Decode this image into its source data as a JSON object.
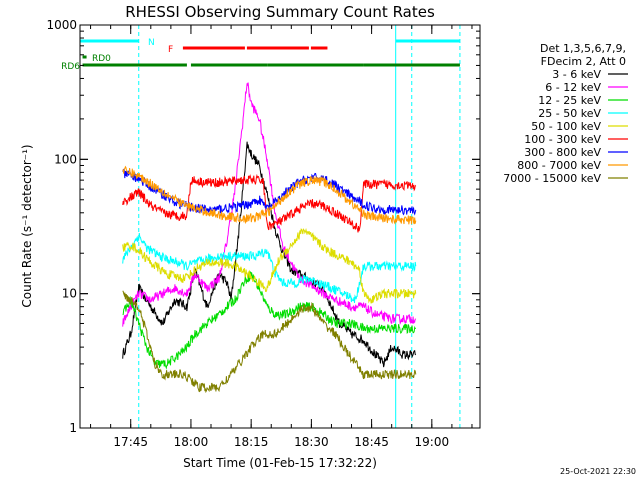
{
  "chart_data": {
    "type": "line",
    "title": "RHESSI Observing Summary Count Rates",
    "xlabel": "Start Time (01-Feb-15 17:32:22)",
    "ylabel": "Count Rate (s⁻¹ detector⁻¹)",
    "y_scale": "log",
    "ylim": [
      1,
      1000
    ],
    "xlim": [
      "17:32:22",
      "19:12:00"
    ],
    "x_ticks": [
      "17:45",
      "18:00",
      "18:15",
      "18:30",
      "18:45",
      "19:00"
    ],
    "y_ticks": [
      "1",
      "10",
      "100",
      "1000"
    ],
    "legend_header": [
      "Det 1,3,5,6,7,9,",
      "FDecim 2, Att 0"
    ],
    "legend_position": "right",
    "series": [
      {
        "name": "3 - 6 keV",
        "color": "#000000",
        "points": [
          [
            "17:43",
            3.5
          ],
          [
            "17:45",
            5
          ],
          [
            "17:47",
            11
          ],
          [
            "17:50",
            8
          ],
          [
            "17:53",
            6
          ],
          [
            "17:56",
            9
          ],
          [
            "17:59",
            8
          ],
          [
            "18:01",
            15
          ],
          [
            "18:04",
            8
          ],
          [
            "18:07",
            14
          ],
          [
            "18:09",
            12
          ],
          [
            "18:10",
            9
          ],
          [
            "18:12",
            30
          ],
          [
            "18:14",
            130
          ],
          [
            "18:15",
            110
          ],
          [
            "18:17",
            90
          ],
          [
            "18:19",
            55
          ],
          [
            "18:21",
            30
          ],
          [
            "18:23",
            20
          ],
          [
            "18:25",
            15
          ],
          [
            "18:27",
            14
          ],
          [
            "18:29",
            13
          ],
          [
            "18:31",
            12
          ],
          [
            "18:33",
            11
          ],
          [
            "18:35",
            8
          ],
          [
            "18:37",
            6
          ],
          [
            "18:40",
            5
          ],
          [
            "18:43",
            4.5
          ],
          [
            "18:46",
            3.5
          ],
          [
            "18:48",
            3
          ],
          [
            "18:50",
            4
          ],
          [
            "18:53",
            3.5
          ],
          [
            "18:56",
            3.5
          ]
        ]
      },
      {
        "name": "6 - 12 keV",
        "color": "#ff00ff",
        "points": [
          [
            "17:43",
            6
          ],
          [
            "17:45",
            8
          ],
          [
            "17:47",
            10
          ],
          [
            "17:50",
            9
          ],
          [
            "17:53",
            10
          ],
          [
            "17:56",
            11
          ],
          [
            "17:59",
            10
          ],
          [
            "18:01",
            14
          ],
          [
            "18:04",
            11
          ],
          [
            "18:07",
            13
          ],
          [
            "18:09",
            25
          ],
          [
            "18:11",
            60
          ],
          [
            "18:13",
            200
          ],
          [
            "18:14",
            380
          ],
          [
            "18:15",
            260
          ],
          [
            "18:17",
            200
          ],
          [
            "18:19",
            100
          ],
          [
            "18:21",
            40
          ],
          [
            "18:23",
            22
          ],
          [
            "18:25",
            17
          ],
          [
            "18:27",
            13
          ],
          [
            "18:29",
            12
          ],
          [
            "18:31",
            11
          ],
          [
            "18:33",
            10
          ],
          [
            "18:36",
            9
          ],
          [
            "18:40",
            8
          ],
          [
            "18:43",
            8
          ],
          [
            "18:46",
            7
          ],
          [
            "18:50",
            6.5
          ],
          [
            "18:56",
            6.5
          ]
        ]
      },
      {
        "name": "12 - 25 keV",
        "color": "#00dd00",
        "points": [
          [
            "17:43",
            7
          ],
          [
            "17:45",
            9
          ],
          [
            "17:47",
            6
          ],
          [
            "17:49",
            4
          ],
          [
            "17:51",
            3
          ],
          [
            "17:54",
            3
          ],
          [
            "17:57",
            3.5
          ],
          [
            "17:59",
            4
          ],
          [
            "18:01",
            5
          ],
          [
            "18:04",
            6
          ],
          [
            "18:07",
            7
          ],
          [
            "18:09",
            8
          ],
          [
            "18:11",
            9
          ],
          [
            "18:13",
            12
          ],
          [
            "18:15",
            14
          ],
          [
            "18:17",
            11
          ],
          [
            "18:19",
            8
          ],
          [
            "18:21",
            7
          ],
          [
            "18:24",
            7
          ],
          [
            "18:27",
            8
          ],
          [
            "18:30",
            8
          ],
          [
            "18:33",
            7
          ],
          [
            "18:36",
            6
          ],
          [
            "18:40",
            6
          ],
          [
            "18:43",
            5.5
          ],
          [
            "18:46",
            5.5
          ],
          [
            "18:50",
            5.5
          ],
          [
            "18:56",
            5.5
          ]
        ]
      },
      {
        "name": "25 - 50 keV",
        "color": "#00ffff",
        "points": [
          [
            "17:43",
            18
          ],
          [
            "17:45",
            22
          ],
          [
            "17:47",
            27
          ],
          [
            "17:49",
            22
          ],
          [
            "17:51",
            20
          ],
          [
            "17:54",
            18
          ],
          [
            "17:57",
            17
          ],
          [
            "17:59",
            16
          ],
          [
            "18:01",
            17
          ],
          [
            "18:04",
            18
          ],
          [
            "18:07",
            19
          ],
          [
            "18:10",
            19
          ],
          [
            "18:13",
            19
          ],
          [
            "18:16",
            19
          ],
          [
            "18:19",
            21
          ],
          [
            "18:21",
            14
          ],
          [
            "18:23",
            12
          ],
          [
            "18:26",
            12
          ],
          [
            "18:29",
            13
          ],
          [
            "18:32",
            12
          ],
          [
            "18:35",
            11
          ],
          [
            "18:38",
            10
          ],
          [
            "18:41",
            9
          ],
          [
            "18:43",
            16
          ],
          [
            "18:46",
            16
          ],
          [
            "18:50",
            16
          ],
          [
            "18:56",
            16
          ]
        ]
      },
      {
        "name": "50 - 100 keV",
        "color": "#dddd00",
        "points": [
          [
            "17:43",
            22
          ],
          [
            "17:45",
            23
          ],
          [
            "17:47",
            21
          ],
          [
            "17:50",
            17
          ],
          [
            "17:54",
            14
          ],
          [
            "17:58",
            13
          ],
          [
            "18:00",
            14
          ],
          [
            "18:02",
            16
          ],
          [
            "18:05",
            17
          ],
          [
            "18:08",
            17
          ],
          [
            "18:11",
            16
          ],
          [
            "18:14",
            14
          ],
          [
            "18:17",
            12
          ],
          [
            "18:19",
            11
          ],
          [
            "18:22",
            18
          ],
          [
            "18:26",
            25
          ],
          [
            "18:28",
            30
          ],
          [
            "18:31",
            25
          ],
          [
            "18:34",
            21
          ],
          [
            "18:37",
            19
          ],
          [
            "18:40",
            17
          ],
          [
            "18:42",
            15
          ],
          [
            "18:43",
            10
          ],
          [
            "18:45",
            9
          ],
          [
            "18:48",
            10
          ],
          [
            "18:50",
            10
          ],
          [
            "18:56",
            10
          ]
        ]
      },
      {
        "name": "100 - 300 keV",
        "color": "#ff0000",
        "points": [
          [
            "17:43",
            48
          ],
          [
            "17:45",
            52
          ],
          [
            "17:47",
            57
          ],
          [
            "17:50",
            45
          ],
          [
            "17:53",
            40
          ],
          [
            "17:56",
            38
          ],
          [
            "17:59",
            38
          ],
          [
            "18:00",
            70
          ],
          [
            "18:03",
            68
          ],
          [
            "18:06",
            67
          ],
          [
            "18:09",
            68
          ],
          [
            "18:12",
            70
          ],
          [
            "18:15",
            70
          ],
          [
            "18:18",
            70
          ],
          [
            "18:19",
            32
          ],
          [
            "18:21",
            33
          ],
          [
            "18:24",
            37
          ],
          [
            "18:27",
            43
          ],
          [
            "18:30",
            47
          ],
          [
            "18:33",
            45
          ],
          [
            "18:36",
            40
          ],
          [
            "18:39",
            35
          ],
          [
            "18:42",
            30
          ],
          [
            "18:43",
            65
          ],
          [
            "18:46",
            65
          ],
          [
            "18:50",
            65
          ],
          [
            "18:56",
            63
          ]
        ]
      },
      {
        "name": "300 - 800 keV",
        "color": "#0000ff",
        "points": [
          [
            "17:43",
            78
          ],
          [
            "17:45",
            76
          ],
          [
            "17:47",
            72
          ],
          [
            "17:50",
            62
          ],
          [
            "17:53",
            55
          ],
          [
            "17:56",
            48
          ],
          [
            "17:59",
            45
          ],
          [
            "18:02",
            43
          ],
          [
            "18:05",
            42
          ],
          [
            "18:08",
            43
          ],
          [
            "18:11",
            44
          ],
          [
            "18:14",
            46
          ],
          [
            "18:17",
            50
          ],
          [
            "18:19",
            43
          ],
          [
            "18:21",
            48
          ],
          [
            "18:24",
            58
          ],
          [
            "18:27",
            68
          ],
          [
            "18:30",
            73
          ],
          [
            "18:33",
            72
          ],
          [
            "18:36",
            64
          ],
          [
            "18:39",
            55
          ],
          [
            "18:42",
            48
          ],
          [
            "18:44",
            45
          ],
          [
            "18:46",
            43
          ],
          [
            "18:50",
            42
          ],
          [
            "18:56",
            42
          ]
        ]
      },
      {
        "name": "800 - 7000 keV",
        "color": "#ff9900",
        "points": [
          [
            "17:43",
            82
          ],
          [
            "17:45",
            80
          ],
          [
            "17:47",
            75
          ],
          [
            "17:50",
            66
          ],
          [
            "17:53",
            58
          ],
          [
            "17:56",
            50
          ],
          [
            "17:59",
            45
          ],
          [
            "18:02",
            42
          ],
          [
            "18:05",
            40
          ],
          [
            "18:08",
            38
          ],
          [
            "18:11",
            37
          ],
          [
            "18:14",
            36
          ],
          [
            "18:17",
            38
          ],
          [
            "18:19",
            40
          ],
          [
            "18:21",
            45
          ],
          [
            "18:24",
            56
          ],
          [
            "18:27",
            65
          ],
          [
            "18:30",
            70
          ],
          [
            "18:33",
            68
          ],
          [
            "18:36",
            60
          ],
          [
            "18:39",
            50
          ],
          [
            "18:42",
            42
          ],
          [
            "18:44",
            38
          ],
          [
            "18:46",
            37
          ],
          [
            "18:50",
            36
          ],
          [
            "18:56",
            35
          ]
        ]
      },
      {
        "name": "7000 - 15000 keV",
        "color": "#808000",
        "points": [
          [
            "17:43",
            10
          ],
          [
            "17:45",
            9
          ],
          [
            "17:47",
            8
          ],
          [
            "17:49",
            5
          ],
          [
            "17:51",
            3
          ],
          [
            "17:53",
            2.5
          ],
          [
            "17:55",
            2.5
          ],
          [
            "17:58",
            2.5
          ],
          [
            "18:00",
            2.3
          ],
          [
            "18:02",
            2
          ],
          [
            "18:04",
            2
          ],
          [
            "18:07",
            2
          ],
          [
            "18:10",
            2.5
          ],
          [
            "18:12",
            3
          ],
          [
            "18:15",
            4
          ],
          [
            "18:18",
            5
          ],
          [
            "18:21",
            5
          ],
          [
            "18:24",
            6
          ],
          [
            "18:27",
            7.5
          ],
          [
            "18:30",
            8
          ],
          [
            "18:33",
            6
          ],
          [
            "18:36",
            5
          ],
          [
            "18:38",
            4
          ],
          [
            "18:41",
            3
          ],
          [
            "18:43",
            2.5
          ],
          [
            "18:46",
            2.5
          ],
          [
            "18:50",
            2.5
          ],
          [
            "18:56",
            2.5
          ]
        ]
      }
    ],
    "flag_bars": [
      {
        "label": "N",
        "color": "#00ffff",
        "segments": [
          [
            "17:32:22",
            "17:47"
          ],
          [
            "18:51",
            "19:07"
          ]
        ]
      },
      {
        "label": "F",
        "color": "#ff0000",
        "segments": [
          [
            "17:58",
            "18:34"
          ]
        ]
      },
      {
        "label": "RD0",
        "color": "#008000",
        "segments": [
          [
            "17:33",
            "17:34"
          ]
        ]
      },
      {
        "label": "RD6",
        "color": "#008000",
        "segments": [
          [
            "17:33",
            "17:59"
          ],
          [
            "18:00",
            "18:19"
          ],
          [
            "18:19",
            "18:43"
          ],
          [
            "18:43",
            "19:07"
          ]
        ]
      }
    ],
    "vertical_markers": [
      {
        "time": "17:47",
        "color": "#00ffff",
        "style": "dashed"
      },
      {
        "time": "18:51",
        "color": "#00ffff",
        "style": "solid"
      },
      {
        "time": "18:55",
        "color": "#00ffff",
        "style": "dashed"
      },
      {
        "time": "19:07",
        "color": "#00ffff",
        "style": "dashed"
      }
    ],
    "timestamp": "25-Oct-2021 22:30"
  }
}
